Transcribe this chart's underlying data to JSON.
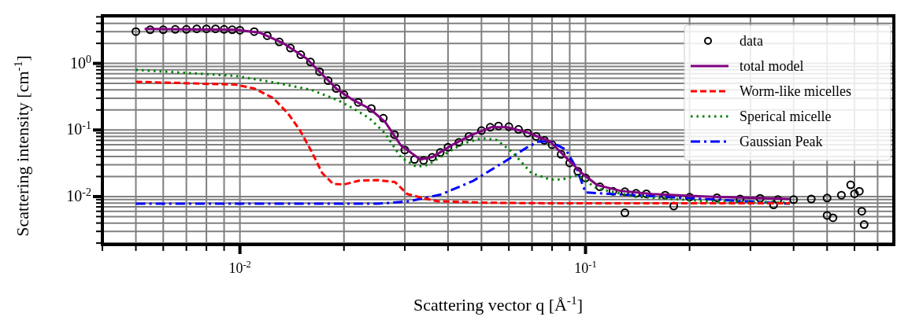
{
  "chart_data": {
    "type": "line",
    "xlabel": "Scattering vector q [Å$^{-1}$]",
    "ylabel": "Scattering intensity [cm$^{-1}$]",
    "log": "xy",
    "grid": true,
    "legend": "top right",
    "xlim": [
      0.004,
      0.78
    ],
    "ylim": [
      0.0019,
      5.2
    ],
    "xticks": [
      {
        "value": 0.004,
        "label": null
      },
      {
        "value": 0.005,
        "label": null
      },
      {
        "value": 0.006,
        "label": null
      },
      {
        "value": 0.007,
        "label": null
      },
      {
        "value": 0.008,
        "label": null
      },
      {
        "value": 0.009,
        "label": null
      },
      {
        "value": 0.01,
        "label": "10$^{-2}$"
      },
      {
        "value": 0.02,
        "label": null
      },
      {
        "value": 0.03,
        "label": null
      },
      {
        "value": 0.04,
        "label": null
      },
      {
        "value": 0.05,
        "label": null
      },
      {
        "value": 0.06,
        "label": null
      },
      {
        "value": 0.07,
        "label": null
      },
      {
        "value": 0.08,
        "label": null
      },
      {
        "value": 0.09,
        "label": null
      },
      {
        "value": 0.1,
        "label": "10$^{-1}$"
      },
      {
        "value": 0.2,
        "label": null
      },
      {
        "value": 0.3,
        "label": null
      },
      {
        "value": 0.4,
        "label": null
      },
      {
        "value": 0.5,
        "label": null
      },
      {
        "value": 0.6,
        "label": null
      },
      {
        "value": 0.7,
        "label": null
      }
    ],
    "yticks": [
      {
        "value": 0.002,
        "label": null
      },
      {
        "value": 0.003,
        "label": null
      },
      {
        "value": 0.004,
        "label": null
      },
      {
        "value": 0.005,
        "label": null
      },
      {
        "value": 0.006,
        "label": null
      },
      {
        "value": 0.007,
        "label": null
      },
      {
        "value": 0.008,
        "label": null
      },
      {
        "value": 0.009,
        "label": null
      },
      {
        "value": 0.01,
        "label": "10$^{-2}$"
      },
      {
        "value": 0.02,
        "label": null
      },
      {
        "value": 0.03,
        "label": null
      },
      {
        "value": 0.04,
        "label": null
      },
      {
        "value": 0.05,
        "label": null
      },
      {
        "value": 0.06,
        "label": null
      },
      {
        "value": 0.07,
        "label": null
      },
      {
        "value": 0.08,
        "label": null
      },
      {
        "value": 0.09,
        "label": null
      },
      {
        "value": 0.1,
        "label": "10$^{-1}$"
      },
      {
        "value": 0.2,
        "label": null
      },
      {
        "value": 0.3,
        "label": null
      },
      {
        "value": 0.4,
        "label": null
      },
      {
        "value": 0.5,
        "label": null
      },
      {
        "value": 0.6,
        "label": null
      },
      {
        "value": 0.7,
        "label": null
      },
      {
        "value": 0.8,
        "label": null
      },
      {
        "value": 0.9,
        "label": null
      },
      {
        "value": 1,
        "label": "10$^{0}$"
      },
      {
        "value": 2,
        "label": null
      },
      {
        "value": 3,
        "label": null
      },
      {
        "value": 4,
        "label": null
      },
      {
        "value": 5,
        "label": null
      }
    ],
    "series": [
      {
        "name": "data",
        "type": "scatter",
        "marker": "circle",
        "color": "#000000",
        "x": [
          0.005,
          0.0055,
          0.006,
          0.0065,
          0.007,
          0.0075,
          0.008,
          0.0085,
          0.009,
          0.0095,
          0.01,
          0.011,
          0.012,
          0.013,
          0.014,
          0.015,
          0.016,
          0.017,
          0.018,
          0.019,
          0.02,
          0.022,
          0.024,
          0.026,
          0.028,
          0.03,
          0.032,
          0.034,
          0.036,
          0.038,
          0.04,
          0.043,
          0.046,
          0.05,
          0.053,
          0.056,
          0.06,
          0.064,
          0.068,
          0.072,
          0.076,
          0.08,
          0.085,
          0.09,
          0.095,
          0.1,
          0.11,
          0.12,
          0.13,
          0.14,
          0.15,
          0.17,
          0.2,
          0.24,
          0.28,
          0.32,
          0.36,
          0.4,
          0.45,
          0.5,
          0.55,
          0.6,
          0.62,
          0.63,
          0.64,
          0.52,
          0.5,
          0.13,
          0.18,
          0.35,
          0.585
        ],
        "values": [
          3.0,
          3.2,
          3.2,
          3.25,
          3.25,
          3.3,
          3.3,
          3.3,
          3.25,
          3.2,
          3.15,
          3.0,
          2.6,
          2.1,
          1.7,
          1.35,
          1.05,
          0.75,
          0.55,
          0.42,
          0.34,
          0.26,
          0.21,
          0.15,
          0.085,
          0.05,
          0.036,
          0.035,
          0.039,
          0.046,
          0.055,
          0.065,
          0.08,
          0.098,
          0.11,
          0.115,
          0.112,
          0.102,
          0.09,
          0.08,
          0.07,
          0.06,
          0.043,
          0.032,
          0.024,
          0.019,
          0.014,
          0.012,
          0.0118,
          0.0112,
          0.011,
          0.0105,
          0.0098,
          0.0096,
          0.0092,
          0.0094,
          0.009,
          0.009,
          0.0092,
          0.0095,
          0.0105,
          0.011,
          0.012,
          0.006,
          0.0038,
          0.0048,
          0.0052,
          0.0057,
          0.0072,
          0.0075,
          0.015
        ]
      },
      {
        "name": "total model",
        "type": "line",
        "line_style": "solid",
        "color": "#800080",
        "x": [
          0.0053,
          0.0097,
          0.0114,
          0.0133,
          0.0156,
          0.0173,
          0.0192,
          0.0213,
          0.0237,
          0.0263,
          0.0292,
          0.0333,
          0.036,
          0.041,
          0.0468,
          0.0533,
          0.0591,
          0.0674,
          0.079,
          0.0876,
          0.0975,
          0.108,
          0.126,
          0.156,
          0.225,
          0.39
        ],
        "values": [
          3.3,
          3.2,
          2.9,
          2.03,
          1.18,
          0.68,
          0.4,
          0.28,
          0.21,
          0.133,
          0.059,
          0.036,
          0.039,
          0.059,
          0.084,
          0.11,
          0.11,
          0.093,
          0.067,
          0.039,
          0.0226,
          0.0149,
          0.0122,
          0.0109,
          0.01,
          0.0092
        ]
      },
      {
        "name": "Worm-like micelles",
        "type": "line",
        "line_style": "dashed",
        "color": "#ff0000",
        "x": [
          0.005,
          0.0097,
          0.011,
          0.0125,
          0.0138,
          0.0149,
          0.016,
          0.0173,
          0.0186,
          0.02,
          0.0221,
          0.025,
          0.0281,
          0.0305,
          0.0338,
          0.0374,
          0.0505,
          0.0833,
          0.139,
          0.39
        ],
        "values": [
          0.53,
          0.48,
          0.42,
          0.3,
          0.175,
          0.1,
          0.051,
          0.0226,
          0.0155,
          0.0152,
          0.0173,
          0.0177,
          0.0165,
          0.0109,
          0.0095,
          0.0085,
          0.0081,
          0.0079,
          0.0079,
          0.0079
        ]
      },
      {
        "name": "Sperical micelle",
        "type": "line",
        "line_style": "dotted",
        "color": "#008000",
        "x": [
          0.005,
          0.0097,
          0.0125,
          0.0161,
          0.0192,
          0.0213,
          0.0237,
          0.0263,
          0.0292,
          0.0324,
          0.0351,
          0.0388,
          0.044,
          0.05,
          0.0553,
          0.0613,
          0.0697,
          0.079,
          0.0854,
          0.0944,
          0.108,
          0.139,
          0.225,
          0.39
        ],
        "values": [
          0.8,
          0.65,
          0.52,
          0.4,
          0.28,
          0.21,
          0.15,
          0.089,
          0.039,
          0.028,
          0.03,
          0.042,
          0.062,
          0.075,
          0.071,
          0.047,
          0.0226,
          0.018,
          0.018,
          0.021,
          0.0132,
          0.01,
          0.0085,
          0.0081
        ]
      },
      {
        "name": "Gaussian Peak",
        "type": "line",
        "line_style": "dashdot",
        "color": "#0000ff",
        "x": [
          0.005,
          0.025,
          0.0309,
          0.0383,
          0.0474,
          0.0586,
          0.0674,
          0.0731,
          0.079,
          0.0876,
          0.0944,
          0.1,
          0.39
        ],
        "values": [
          0.0078,
          0.0078,
          0.0085,
          0.0108,
          0.0173,
          0.034,
          0.054,
          0.067,
          0.067,
          0.051,
          0.026,
          0.0115,
          0.0078
        ]
      }
    ]
  }
}
